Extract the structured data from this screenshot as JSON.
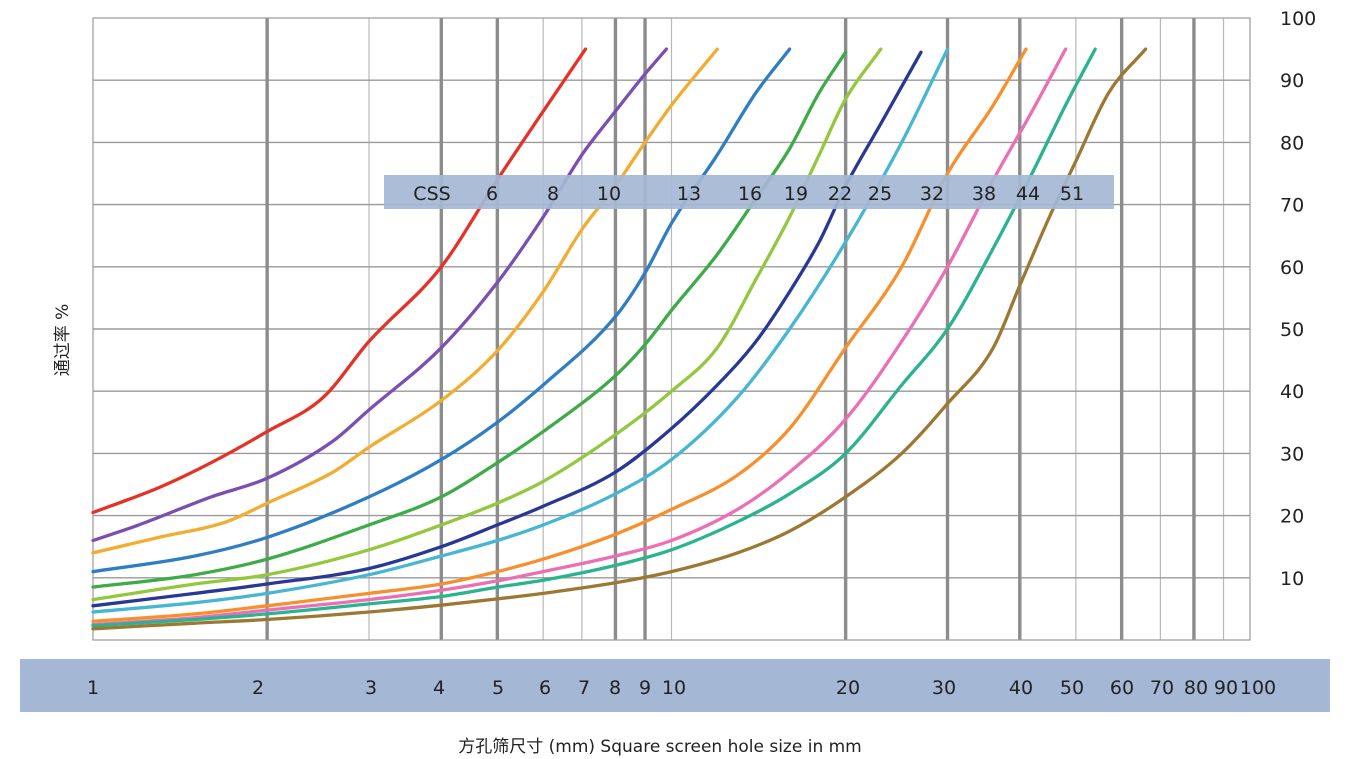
{
  "chart_data": {
    "type": "line",
    "title": "",
    "xlabel": "方孔筛尺寸 (mm)  Square screen hole size in mm",
    "ylabel": "通过率 %",
    "x_scale": "log",
    "xlim": [
      1,
      100
    ],
    "ylim": [
      0,
      100
    ],
    "x_ticks": [
      1,
      2,
      3,
      4,
      5,
      6,
      7,
      8,
      9,
      10,
      20,
      30,
      40,
      50,
      60,
      70,
      80,
      90,
      100
    ],
    "x_tick_labels": [
      "1",
      "2",
      "3",
      "4",
      "5",
      "6",
      "7",
      "8",
      "9",
      "10",
      "20",
      "30",
      "40",
      "50",
      "60",
      "70",
      "80",
      "90",
      "100"
    ],
    "y_ticks": [
      10,
      20,
      30,
      40,
      50,
      60,
      70,
      80,
      90,
      100
    ],
    "y_tick_labels": [
      "10",
      "20",
      "30",
      "40",
      "50",
      "60",
      "70",
      "80",
      "90",
      "100"
    ],
    "grid": true,
    "legend_band": {
      "prefix": "CSS",
      "labels": [
        "6",
        "8",
        "10",
        "13",
        "16",
        "19",
        "22",
        "25",
        "32",
        "38",
        "44",
        "51"
      ],
      "color": "#a4b7d4"
    },
    "series": [
      {
        "name": "6",
        "color": "#e53228",
        "points": [
          [
            1,
            20.5
          ],
          [
            1.3,
            24.5
          ],
          [
            1.6,
            28.5
          ],
          [
            2,
            33.5
          ],
          [
            2.5,
            39
          ],
          [
            3,
            48
          ],
          [
            4,
            60
          ],
          [
            5,
            74
          ],
          [
            6,
            85
          ],
          [
            7.1,
            95
          ]
        ]
      },
      {
        "name": "8",
        "color": "#7a4fb2",
        "points": [
          [
            1,
            16
          ],
          [
            1.2,
            18.5
          ],
          [
            1.6,
            23
          ],
          [
            2,
            26
          ],
          [
            2.6,
            32
          ],
          [
            3,
            37
          ],
          [
            4,
            47
          ],
          [
            5,
            57.5
          ],
          [
            6,
            68
          ],
          [
            7,
            78
          ],
          [
            8,
            85
          ],
          [
            9,
            91
          ],
          [
            9.8,
            95
          ]
        ]
      },
      {
        "name": "10",
        "color": "#f2ad30",
        "points": [
          [
            1,
            14
          ],
          [
            1.3,
            16.5
          ],
          [
            1.7,
            19
          ],
          [
            2,
            22
          ],
          [
            2.6,
            27
          ],
          [
            3,
            31
          ],
          [
            4,
            38.5
          ],
          [
            5,
            46.5
          ],
          [
            6,
            56
          ],
          [
            7,
            66
          ],
          [
            8,
            73
          ],
          [
            9,
            80
          ],
          [
            10,
            86
          ],
          [
            12,
            95
          ]
        ]
      },
      {
        "name": "13",
        "color": "#2f7dc2",
        "points": [
          [
            1,
            11
          ],
          [
            1.5,
            13.5
          ],
          [
            2,
            16.5
          ],
          [
            3,
            23
          ],
          [
            4,
            29
          ],
          [
            5,
            35
          ],
          [
            6,
            41
          ],
          [
            8,
            52
          ],
          [
            9,
            59
          ],
          [
            10,
            67
          ],
          [
            12,
            78
          ],
          [
            14,
            88
          ],
          [
            16,
            95
          ]
        ]
      },
      {
        "name": "16",
        "color": "#3dab48",
        "points": [
          [
            1,
            8.5
          ],
          [
            1.5,
            10.5
          ],
          [
            2,
            13
          ],
          [
            3,
            18.5
          ],
          [
            4,
            23
          ],
          [
            5,
            28.5
          ],
          [
            6,
            33.5
          ],
          [
            8,
            42.5
          ],
          [
            9,
            47.5
          ],
          [
            10,
            53
          ],
          [
            12,
            62
          ],
          [
            14,
            71
          ],
          [
            16,
            79
          ],
          [
            18,
            88
          ],
          [
            20,
            94.5
          ]
        ]
      },
      {
        "name": "19",
        "color": "#93c83e",
        "points": [
          [
            1,
            6.5
          ],
          [
            1.5,
            9
          ],
          [
            2,
            10.5
          ],
          [
            3,
            14.5
          ],
          [
            4,
            18.5
          ],
          [
            5,
            22
          ],
          [
            6,
            25.5
          ],
          [
            8,
            33
          ],
          [
            10,
            40
          ],
          [
            12,
            47
          ],
          [
            14,
            58
          ],
          [
            16,
            68
          ],
          [
            18,
            78
          ],
          [
            20,
            87
          ],
          [
            23,
            95
          ]
        ]
      },
      {
        "name": "22",
        "color": "#283894",
        "points": [
          [
            1,
            5.5
          ],
          [
            1.5,
            7.5
          ],
          [
            2,
            9
          ],
          [
            3,
            11.5
          ],
          [
            4,
            15
          ],
          [
            5,
            18.5
          ],
          [
            6,
            21.5
          ],
          [
            8,
            27
          ],
          [
            10,
            34
          ],
          [
            12,
            41
          ],
          [
            14,
            48
          ],
          [
            16,
            56
          ],
          [
            18,
            64
          ],
          [
            20,
            73
          ],
          [
            23,
            83
          ],
          [
            27,
            94.5
          ]
        ]
      },
      {
        "name": "25",
        "color": "#47b7d1",
        "points": [
          [
            1,
            4.5
          ],
          [
            1.5,
            6
          ],
          [
            2,
            7.5
          ],
          [
            3,
            10.5
          ],
          [
            4,
            13.5
          ],
          [
            5,
            16
          ],
          [
            6,
            18.5
          ],
          [
            8,
            23.5
          ],
          [
            10,
            29
          ],
          [
            13,
            39
          ],
          [
            16,
            50
          ],
          [
            20,
            64
          ],
          [
            25,
            80
          ],
          [
            30,
            95
          ]
        ]
      },
      {
        "name": "32",
        "color": "#f7902c",
        "points": [
          [
            1,
            3
          ],
          [
            1.5,
            4.2
          ],
          [
            2,
            5.5
          ],
          [
            3,
            7.5
          ],
          [
            4,
            9
          ],
          [
            5,
            11
          ],
          [
            6,
            13
          ],
          [
            8,
            17
          ],
          [
            10,
            21
          ],
          [
            13,
            26.5
          ],
          [
            16,
            34
          ],
          [
            20,
            47
          ],
          [
            25,
            60
          ],
          [
            30,
            75
          ],
          [
            36,
            86
          ],
          [
            41,
            95
          ]
        ]
      },
      {
        "name": "38",
        "color": "#ea6fb4",
        "points": [
          [
            1,
            2.5
          ],
          [
            1.5,
            3.6
          ],
          [
            2,
            4.8
          ],
          [
            3,
            6.5
          ],
          [
            4,
            8
          ],
          [
            5,
            9.5
          ],
          [
            6,
            11
          ],
          [
            8,
            13.5
          ],
          [
            10,
            16
          ],
          [
            13,
            21
          ],
          [
            16,
            27
          ],
          [
            20,
            35.5
          ],
          [
            25,
            48
          ],
          [
            30,
            60
          ],
          [
            36,
            74
          ],
          [
            42,
            85
          ],
          [
            48,
            95
          ]
        ]
      },
      {
        "name": "44",
        "color": "#2ab38f",
        "points": [
          [
            1,
            2.3
          ],
          [
            1.5,
            3.3
          ],
          [
            2,
            4.2
          ],
          [
            3,
            5.8
          ],
          [
            4,
            7
          ],
          [
            5,
            8.5
          ],
          [
            6,
            9.6
          ],
          [
            8,
            12
          ],
          [
            10,
            14.5
          ],
          [
            13,
            19
          ],
          [
            16,
            23.5
          ],
          [
            20,
            30
          ],
          [
            25,
            41
          ],
          [
            30,
            50
          ],
          [
            36,
            63
          ],
          [
            42,
            75
          ],
          [
            48,
            86
          ],
          [
            54,
            95
          ]
        ]
      },
      {
        "name": "51",
        "color": "#9c7833",
        "points": [
          [
            1,
            1.8
          ],
          [
            1.5,
            2.7
          ],
          [
            2,
            3.3
          ],
          [
            3,
            4.5
          ],
          [
            4,
            5.6
          ],
          [
            5,
            6.6
          ],
          [
            6,
            7.5
          ],
          [
            8,
            9.2
          ],
          [
            10,
            11
          ],
          [
            13,
            14
          ],
          [
            16,
            17.5
          ],
          [
            20,
            23
          ],
          [
            25,
            30
          ],
          [
            30,
            38
          ],
          [
            36,
            47
          ],
          [
            40,
            57
          ],
          [
            45,
            68
          ],
          [
            50,
            77
          ],
          [
            57,
            88
          ],
          [
            66,
            95
          ]
        ]
      }
    ]
  }
}
